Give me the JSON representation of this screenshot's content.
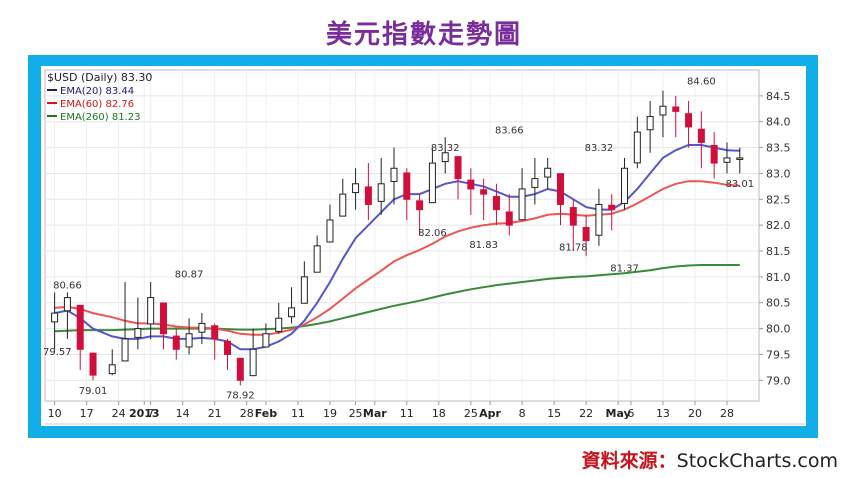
{
  "title": "美元指數走勢圖",
  "source": {
    "label": "資料來源：",
    "value": "StockCharts.com"
  },
  "legend": {
    "symbol": "$USD (Daily) 83.30",
    "ema20": "EMA(20) 83.44",
    "ema60": "EMA(60) 82.76",
    "ema260": "EMA(260) 81.23"
  },
  "colors": {
    "ema20": "#5555cc",
    "ema60": "#ee5555",
    "ema260": "#3a8a3a",
    "up": "#222222",
    "down": "#d0103a"
  },
  "chart_data": {
    "type": "candlestick",
    "ylim": [
      78.6,
      85.0
    ],
    "y_ticks": [
      79.0,
      79.5,
      80.0,
      80.5,
      81.0,
      81.5,
      82.0,
      82.5,
      83.0,
      83.5,
      84.0,
      84.5
    ],
    "y_tick_labels": [
      "79.0",
      "79.5",
      "80.0",
      "80.5",
      "81.0",
      "81.5",
      "82.0",
      "82.5",
      "83.0",
      "83.5",
      "84.0",
      "84.5"
    ],
    "x_tick_labels": [
      "10",
      "17",
      "24",
      "2013",
      "7",
      "14",
      "21",
      "28",
      "Feb",
      "11",
      "19",
      "25",
      "Mar",
      "11",
      "18",
      "25",
      "Apr",
      "8",
      "15",
      "22",
      "May",
      "6",
      "13",
      "20",
      "28"
    ],
    "x_tick_days": [
      0,
      5,
      10,
      14,
      15,
      20,
      25,
      30,
      33,
      38,
      43,
      47,
      50,
      55,
      60,
      65,
      68,
      73,
      78,
      83,
      88,
      90,
      95,
      100,
      105
    ],
    "days": [
      0,
      2,
      4,
      6,
      9,
      11,
      13,
      15,
      17,
      19,
      21,
      23,
      25,
      27,
      29,
      31,
      33,
      35,
      37,
      39,
      41,
      43,
      45,
      47,
      49,
      51,
      53,
      55,
      57,
      59,
      61,
      63,
      65,
      67,
      69,
      71,
      73,
      75,
      77,
      79,
      81,
      83,
      85,
      87,
      89,
      91,
      93,
      95,
      97,
      99,
      101,
      103,
      105,
      107
    ],
    "close": [
      80.3,
      80.6,
      79.6,
      79.1,
      79.3,
      79.8,
      80.0,
      80.6,
      79.9,
      79.6,
      79.9,
      80.1,
      79.8,
      79.5,
      79.0,
      79.6,
      79.9,
      80.2,
      80.4,
      81.0,
      81.6,
      82.1,
      82.6,
      82.8,
      82.4,
      82.8,
      83.1,
      82.5,
      82.3,
      83.2,
      83.4,
      82.9,
      82.7,
      82.6,
      82.3,
      82.0,
      82.7,
      82.9,
      83.1,
      82.4,
      82.0,
      81.7,
      82.4,
      82.3,
      83.1,
      83.8,
      84.1,
      84.3,
      84.2,
      83.9,
      83.6,
      83.2,
      83.3,
      83.3
    ],
    "high": [
      80.7,
      80.7,
      79.8,
      79.4,
      79.6,
      80.9,
      80.6,
      80.9,
      80.3,
      80.0,
      80.2,
      80.3,
      80.1,
      79.8,
      79.4,
      80.0,
      80.1,
      80.5,
      80.8,
      81.3,
      81.8,
      82.4,
      82.9,
      83.1,
      83.2,
      83.3,
      83.5,
      83.1,
      82.6,
      83.5,
      83.7,
      83.3,
      83.1,
      82.9,
      82.8,
      82.6,
      83.1,
      83.3,
      83.3,
      83.0,
      82.5,
      82.2,
      82.7,
      82.6,
      83.3,
      84.1,
      84.4,
      84.6,
      84.5,
      84.4,
      84.2,
      83.8,
      83.6,
      83.5
    ],
    "low": [
      79.6,
      79.8,
      79.2,
      79.0,
      79.1,
      79.4,
      79.6,
      79.8,
      79.6,
      79.4,
      79.5,
      79.7,
      79.4,
      79.2,
      78.9,
      79.3,
      79.7,
      79.9,
      80.1,
      80.6,
      81.2,
      81.7,
      82.2,
      82.3,
      82.1,
      82.2,
      82.4,
      82.1,
      81.8,
      82.6,
      83.0,
      82.5,
      82.2,
      82.1,
      82.0,
      81.8,
      82.1,
      82.4,
      82.7,
      82.0,
      81.5,
      81.4,
      81.6,
      81.9,
      82.3,
      83.1,
      83.4,
      83.7,
      83.7,
      83.5,
      83.1,
      82.9,
      83.0,
      83.0
    ],
    "ema20": [
      80.3,
      80.35,
      80.2,
      80.0,
      79.85,
      79.8,
      79.8,
      79.85,
      79.85,
      79.8,
      79.8,
      79.82,
      79.8,
      79.75,
      79.6,
      79.6,
      79.65,
      79.75,
      79.9,
      80.15,
      80.5,
      80.9,
      81.35,
      81.75,
      82.0,
      82.25,
      82.5,
      82.6,
      82.6,
      82.7,
      82.8,
      82.85,
      82.8,
      82.75,
      82.65,
      82.55,
      82.55,
      82.6,
      82.7,
      82.65,
      82.5,
      82.35,
      82.3,
      82.3,
      82.45,
      82.7,
      83.0,
      83.3,
      83.45,
      83.55,
      83.55,
      83.5,
      83.45,
      83.44
    ],
    "ema60": [
      80.4,
      80.42,
      80.38,
      80.3,
      80.22,
      80.15,
      80.1,
      80.1,
      80.08,
      80.04,
      80.02,
      80.02,
      80.0,
      79.96,
      79.9,
      79.88,
      79.88,
      79.92,
      79.98,
      80.08,
      80.22,
      80.38,
      80.58,
      80.78,
      80.95,
      81.12,
      81.3,
      81.42,
      81.52,
      81.64,
      81.78,
      81.88,
      81.95,
      82.0,
      82.03,
      82.04,
      82.08,
      82.13,
      82.2,
      82.22,
      82.2,
      82.18,
      82.2,
      82.22,
      82.3,
      82.42,
      82.56,
      82.7,
      82.8,
      82.85,
      82.85,
      82.82,
      82.78,
      82.76
    ],
    "ema260": [
      79.95,
      79.96,
      79.97,
      79.97,
      79.97,
      79.98,
      79.99,
      80.0,
      80.0,
      80.0,
      80.0,
      80.0,
      80.0,
      79.99,
      79.98,
      79.98,
      79.99,
      80.0,
      80.02,
      80.05,
      80.09,
      80.14,
      80.2,
      80.26,
      80.32,
      80.38,
      80.44,
      80.49,
      80.54,
      80.6,
      80.66,
      80.71,
      80.76,
      80.8,
      80.84,
      80.87,
      80.9,
      80.93,
      80.96,
      80.98,
      81.0,
      81.01,
      81.03,
      81.05,
      81.07,
      81.1,
      81.13,
      81.17,
      81.2,
      81.22,
      81.23,
      81.23,
      81.23,
      81.23
    ],
    "annotations": [
      {
        "day": 2,
        "value": 80.66,
        "text": "80.66",
        "pos": "above"
      },
      {
        "day": 0,
        "value": 79.57,
        "text": "79.57",
        "pos": "left"
      },
      {
        "day": 6,
        "value": 79.01,
        "text": "79.01",
        "pos": "below"
      },
      {
        "day": 21,
        "value": 80.87,
        "text": "80.87",
        "pos": "above"
      },
      {
        "day": 29,
        "value": 78.92,
        "text": "78.92",
        "pos": "below"
      },
      {
        "day": 61,
        "value": 83.32,
        "text": "83.32",
        "pos": "above"
      },
      {
        "day": 59,
        "value": 82.06,
        "text": "82.06",
        "pos": "below"
      },
      {
        "day": 67,
        "value": 81.83,
        "text": "81.83",
        "pos": "below"
      },
      {
        "day": 71,
        "value": 83.66,
        "text": "83.66",
        "pos": "above"
      },
      {
        "day": 81,
        "value": 81.78,
        "text": "81.78",
        "pos": "below"
      },
      {
        "day": 85,
        "value": 83.32,
        "text": "83.32",
        "pos": "above"
      },
      {
        "day": 89,
        "value": 81.37,
        "text": "81.37",
        "pos": "below"
      },
      {
        "day": 101,
        "value": 84.6,
        "text": "84.60",
        "pos": "above"
      },
      {
        "day": 107,
        "value": 83.01,
        "text": "83.01",
        "pos": "below"
      }
    ]
  }
}
